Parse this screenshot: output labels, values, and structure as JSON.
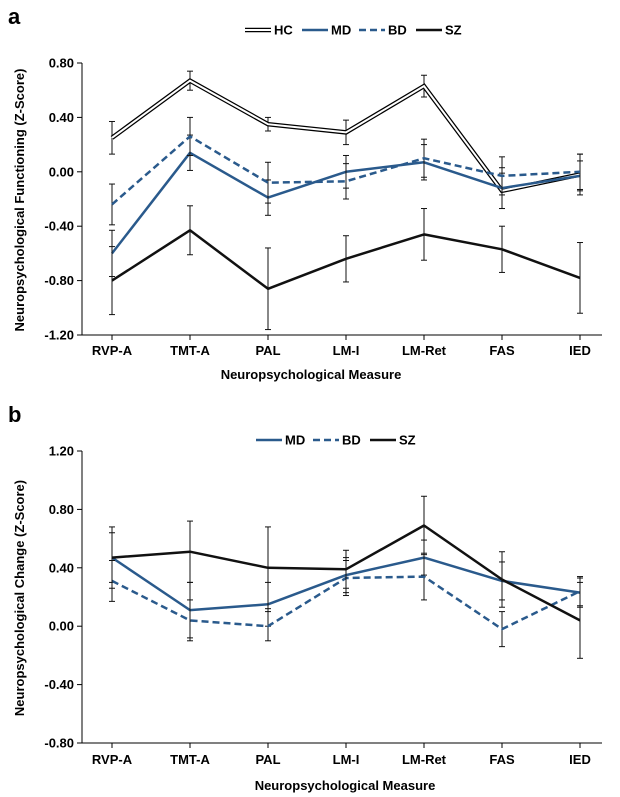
{
  "chart_data": [
    {
      "panel": "a",
      "type": "line",
      "categories": [
        "RVP-A",
        "TMT-A",
        "PAL",
        "LM-I",
        "LM-Ret",
        "FAS",
        "IED"
      ],
      "ylim": [
        -1.2,
        0.8
      ],
      "yticks": [
        "0.80",
        "0.40",
        "0.00",
        "-0.40",
        "-0.80",
        "-1.20"
      ],
      "xlabel": "Neuropsychological Measure",
      "ylabel": "Neuropsychological Functioning (Z-Score)",
      "legend_position": "top-center",
      "grid": false,
      "series": [
        {
          "name": "HC",
          "style": "double",
          "color": "#000000",
          "values": [
            0.25,
            0.67,
            0.35,
            0.29,
            0.63,
            -0.14,
            -0.02
          ],
          "errors": [
            0.12,
            0.07,
            0.05,
            0.09,
            0.08,
            0.13,
            0.15
          ]
        },
        {
          "name": "MD",
          "style": "solid",
          "color": "#2a5a8c",
          "values": [
            -0.6,
            0.14,
            -0.19,
            0.0,
            0.07,
            -0.12,
            -0.03
          ],
          "errors": [
            0.17,
            0.13,
            0.13,
            0.12,
            0.13,
            0.15,
            0.11
          ]
        },
        {
          "name": "BD",
          "style": "dashed",
          "color": "#2a5a8c",
          "values": [
            -0.24,
            0.26,
            -0.08,
            -0.07,
            0.1,
            -0.03,
            0.0
          ],
          "errors": [
            0.15,
            0.14,
            0.15,
            0.13,
            0.14,
            0.14,
            0.13
          ]
        },
        {
          "name": "SZ",
          "style": "solid",
          "color": "#111111",
          "values": [
            -0.8,
            -0.43,
            -0.86,
            -0.64,
            -0.46,
            -0.57,
            -0.78
          ],
          "errors": [
            0.25,
            0.18,
            0.3,
            0.17,
            0.19,
            0.17,
            0.26
          ]
        }
      ]
    },
    {
      "panel": "b",
      "type": "line",
      "categories": [
        "RVP-A",
        "TMT-A",
        "PAL",
        "LM-I",
        "LM-Ret",
        "FAS",
        "IED"
      ],
      "ylim": [
        -0.8,
        1.2
      ],
      "yticks": [
        "1.20",
        "0.80",
        "0.40",
        "0.00",
        "-0.40",
        "-0.80"
      ],
      "xlabel": "Neuropsychological Measure",
      "ylabel": "Neuropsychological Change (Z-Score)",
      "legend_position": "top-center",
      "grid": false,
      "series": [
        {
          "name": "MD",
          "style": "solid",
          "color": "#2a5a8c",
          "values": [
            0.47,
            0.11,
            0.15,
            0.35,
            0.47,
            0.31,
            0.23
          ],
          "errors": [
            0.17,
            0.19,
            0.15,
            0.12,
            0.12,
            0.13,
            0.1
          ]
        },
        {
          "name": "BD",
          "style": "dashed",
          "color": "#2a5a8c",
          "values": [
            0.31,
            0.04,
            0.0,
            0.33,
            0.34,
            -0.02,
            0.24
          ],
          "errors": [
            0.14,
            0.14,
            0.1,
            0.12,
            0.16,
            0.12,
            0.1
          ]
        },
        {
          "name": "SZ",
          "style": "solid",
          "color": "#111111",
          "values": [
            0.47,
            0.51,
            0.4,
            0.39,
            0.69,
            0.32,
            0.04
          ],
          "errors": [
            0.21,
            0.21,
            0.28,
            0.13,
            0.2,
            0.19,
            0.26
          ]
        }
      ]
    }
  ]
}
